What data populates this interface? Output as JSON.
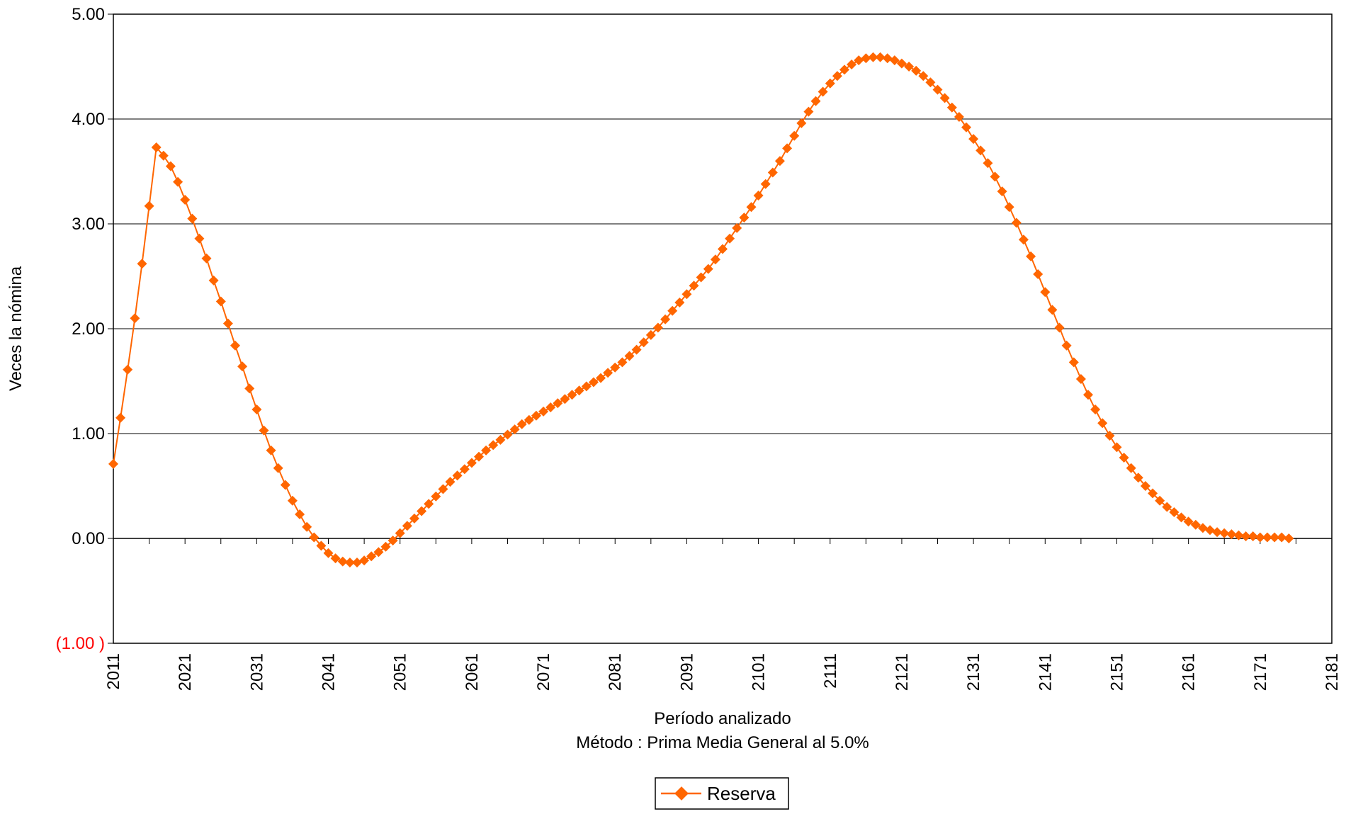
{
  "chart_data": {
    "type": "line",
    "title": "",
    "xlabel": "Período analizado",
    "subtitle": "Método : Prima Media General al 5.0%",
    "ylabel": "Veces la nómina",
    "ylim": [
      -1,
      5
    ],
    "xlim": [
      2011,
      2181
    ],
    "yticks": [
      {
        "value": 5,
        "label": "5.00",
        "color": "#000000"
      },
      {
        "value": 4,
        "label": "4.00",
        "color": "#000000"
      },
      {
        "value": 3,
        "label": "3.00",
        "color": "#000000"
      },
      {
        "value": 2,
        "label": "2.00",
        "color": "#000000"
      },
      {
        "value": 1,
        "label": "1.00",
        "color": "#000000"
      },
      {
        "value": 0,
        "label": "0.00",
        "color": "#000000"
      },
      {
        "value": -1,
        "label": "(1.00 )",
        "color": "#ff0000"
      }
    ],
    "xticks": [
      "2011",
      "2021",
      "2031",
      "2041",
      "2051",
      "2061",
      "2071",
      "2081",
      "2091",
      "2101",
      "2111",
      "2121",
      "2131",
      "2141",
      "2151",
      "2161",
      "2171",
      "2181"
    ],
    "grid": "horizontal",
    "legend": {
      "placement": "bottom-center",
      "entries": [
        "Reserva"
      ]
    },
    "series": [
      {
        "name": "Reserva",
        "color": "#ff6600",
        "x_start": 2011,
        "x_step": 1,
        "values": [
          0.71,
          1.15,
          1.61,
          2.1,
          2.62,
          3.17,
          3.73,
          3.65,
          3.55,
          3.4,
          3.23,
          3.05,
          2.86,
          2.67,
          2.46,
          2.26,
          2.05,
          1.84,
          1.64,
          1.43,
          1.23,
          1.03,
          0.84,
          0.67,
          0.51,
          0.36,
          0.23,
          0.11,
          0.01,
          -0.07,
          -0.14,
          -0.19,
          -0.22,
          -0.23,
          -0.23,
          -0.21,
          -0.17,
          -0.13,
          -0.08,
          -0.02,
          0.05,
          0.12,
          0.19,
          0.26,
          0.33,
          0.4,
          0.47,
          0.54,
          0.6,
          0.66,
          0.72,
          0.78,
          0.84,
          0.89,
          0.94,
          0.99,
          1.04,
          1.09,
          1.13,
          1.17,
          1.21,
          1.25,
          1.29,
          1.33,
          1.37,
          1.41,
          1.45,
          1.49,
          1.53,
          1.58,
          1.63,
          1.68,
          1.74,
          1.8,
          1.87,
          1.94,
          2.01,
          2.09,
          2.17,
          2.25,
          2.33,
          2.41,
          2.49,
          2.57,
          2.66,
          2.76,
          2.86,
          2.96,
          3.06,
          3.16,
          3.27,
          3.38,
          3.49,
          3.6,
          3.72,
          3.84,
          3.96,
          4.07,
          4.17,
          4.26,
          4.34,
          4.41,
          4.47,
          4.52,
          4.56,
          4.58,
          4.59,
          4.59,
          4.58,
          4.56,
          4.53,
          4.5,
          4.46,
          4.41,
          4.35,
          4.28,
          4.2,
          4.11,
          4.02,
          3.92,
          3.81,
          3.7,
          3.58,
          3.45,
          3.31,
          3.16,
          3.01,
          2.85,
          2.69,
          2.52,
          2.35,
          2.18,
          2.01,
          1.84,
          1.68,
          1.52,
          1.37,
          1.23,
          1.1,
          0.98,
          0.87,
          0.77,
          0.67,
          0.58,
          0.5,
          0.43,
          0.36,
          0.3,
          0.25,
          0.2,
          0.16,
          0.13,
          0.1,
          0.08,
          0.06,
          0.05,
          0.04,
          0.03,
          0.02,
          0.02,
          0.01,
          0.01,
          0.01,
          0.01,
          0.0
        ]
      }
    ]
  }
}
